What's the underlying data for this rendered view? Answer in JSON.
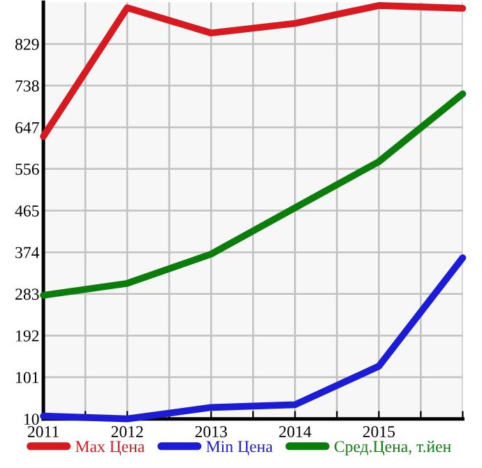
{
  "chart_data": {
    "type": "line",
    "x": [
      2011,
      2012,
      2013,
      2014,
      2015,
      2016
    ],
    "series": [
      {
        "name": "Max Цена",
        "color": "#d71920",
        "values": [
          627,
          908,
          853,
          874,
          913,
          907
        ]
      },
      {
        "name": "Min Цена",
        "color": "#1c1cd6",
        "values": [
          16,
          10,
          35,
          41,
          125,
          362
        ]
      },
      {
        "name": "Сред.Цена, т.йен",
        "color": "#0a7d0a",
        "values": [
          280,
          306,
          370,
          471,
          572,
          720
        ]
      }
    ],
    "xlim": [
      2011,
      2016
    ],
    "xticks": [
      2011,
      {
        "value": 2011.5,
        "label": null
      },
      2012,
      {
        "value": 2012.5,
        "label": null
      },
      2013,
      {
        "value": 2013.5,
        "label": null
      },
      2014,
      {
        "value": 2014.5,
        "label": null
      },
      2015,
      {
        "value": 2015.5,
        "label": null
      },
      {
        "value": 2016,
        "label": null
      }
    ],
    "ylim": [
      10,
      920
    ],
    "yticks": [
      10,
      101,
      192,
      283,
      374,
      465,
      556,
      647,
      738,
      829
    ],
    "grid": true,
    "legend": "bottom",
    "marker": "none",
    "line_style": "solid"
  }
}
